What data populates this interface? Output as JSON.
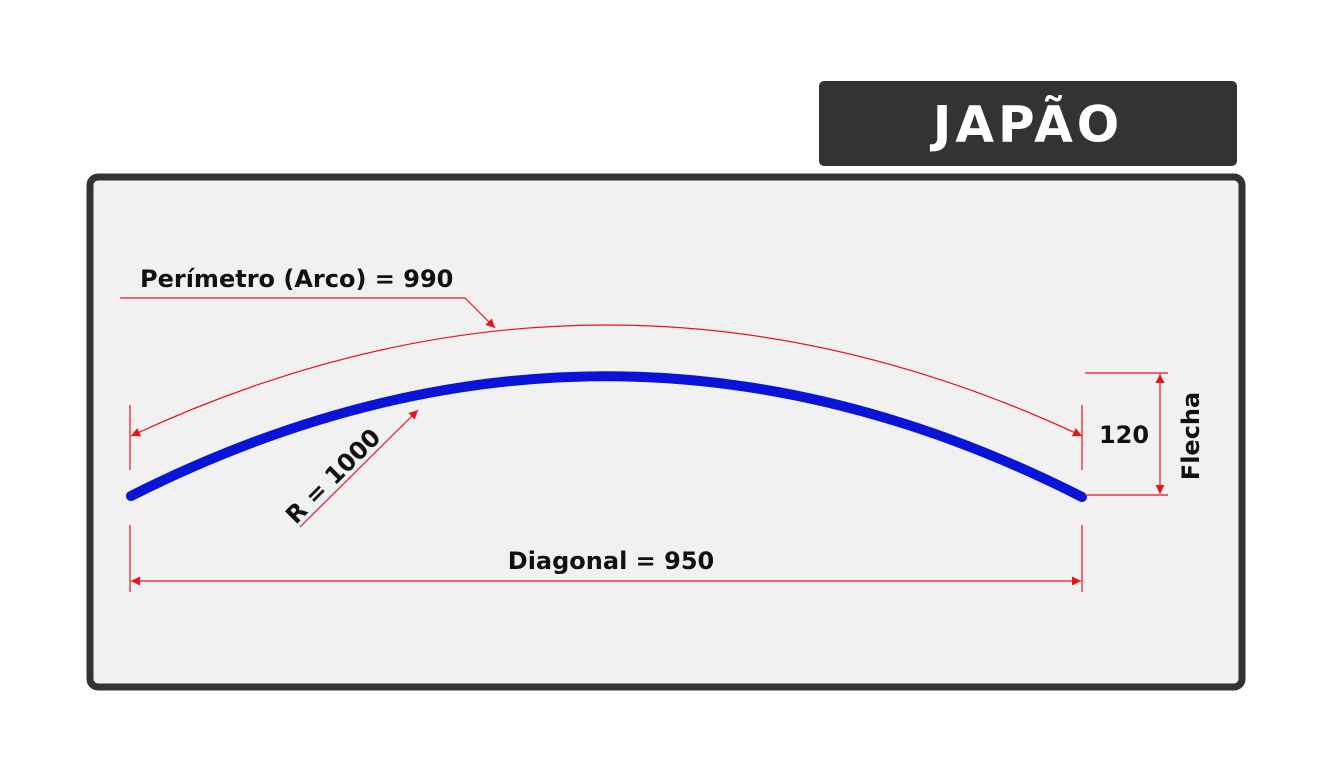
{
  "header": {
    "title": "JAPÃO"
  },
  "labels": {
    "perimeter": "Perímetro (Arco) = 990",
    "radius": "R = 1000",
    "diagonal": "Diagonal = 950",
    "rise_value": "120",
    "rise_name": "Flecha"
  }
}
